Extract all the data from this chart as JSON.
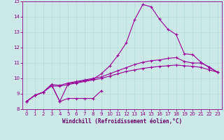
{
  "xlabel": "Windchill (Refroidissement éolien,°C)",
  "bg_color": "#cce8e8",
  "line_color": "#990099",
  "xmin": 0,
  "xmax": 23,
  "ymin": 8,
  "ymax": 15,
  "xticks": [
    0,
    1,
    2,
    3,
    4,
    5,
    6,
    7,
    8,
    9,
    10,
    11,
    12,
    13,
    14,
    15,
    16,
    17,
    18,
    19,
    20,
    21,
    22,
    23
  ],
  "yticks": [
    8,
    9,
    10,
    11,
    12,
    13,
    14,
    15
  ],
  "line1_x": [
    0,
    1,
    2,
    3,
    4,
    5,
    6,
    7,
    8,
    9
  ],
  "line1_y": [
    8.5,
    8.9,
    9.1,
    9.6,
    8.5,
    8.7,
    8.7,
    8.7,
    8.7,
    9.2
  ],
  "line2_x": [
    0,
    1,
    2,
    3,
    4,
    5,
    6,
    7,
    8,
    9,
    10,
    11,
    12,
    13,
    14,
    15,
    16,
    17,
    18,
    19,
    20,
    21,
    22,
    23
  ],
  "line2_y": [
    8.5,
    8.9,
    9.1,
    9.6,
    8.5,
    9.65,
    9.75,
    9.85,
    9.95,
    10.3,
    10.8,
    11.5,
    12.3,
    13.8,
    14.8,
    14.65,
    13.85,
    13.2,
    12.85,
    11.6,
    11.55,
    11.05,
    10.7,
    10.4
  ],
  "line3_x": [
    0,
    1,
    2,
    3,
    4,
    5,
    6,
    7,
    8,
    9,
    10,
    11,
    12,
    13,
    14,
    15,
    16,
    17,
    18,
    19,
    20,
    21,
    22,
    23
  ],
  "line3_y": [
    8.5,
    8.9,
    9.1,
    9.6,
    9.55,
    9.7,
    9.8,
    9.9,
    10.0,
    10.1,
    10.3,
    10.5,
    10.7,
    10.9,
    11.05,
    11.15,
    11.2,
    11.3,
    11.35,
    11.1,
    11.0,
    11.0,
    10.75,
    10.4
  ],
  "line4_x": [
    0,
    1,
    2,
    3,
    4,
    5,
    6,
    7,
    8,
    9,
    10,
    11,
    12,
    13,
    14,
    15,
    16,
    17,
    18,
    19,
    20,
    21,
    22,
    23
  ],
  "line4_y": [
    8.5,
    8.9,
    9.1,
    9.5,
    9.5,
    9.6,
    9.7,
    9.8,
    9.9,
    10.0,
    10.15,
    10.3,
    10.45,
    10.55,
    10.65,
    10.72,
    10.78,
    10.82,
    10.87,
    10.82,
    10.78,
    10.72,
    10.55,
    10.4
  ]
}
